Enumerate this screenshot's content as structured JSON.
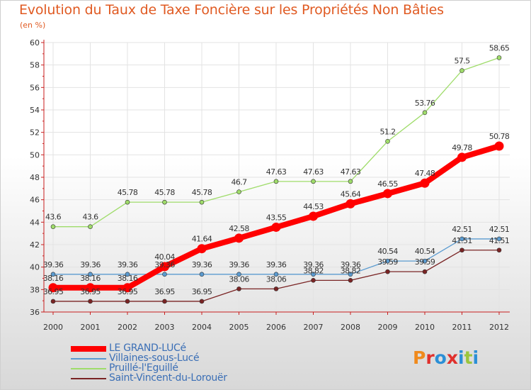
{
  "title": "Evolution du Taux de Taxe Foncière sur les Propriétés Non Bâties",
  "subtitle": "(en %)",
  "logo_text": "Proxiti",
  "colors": {
    "title": "#e05a22",
    "axis": "#c81e1e",
    "grid": "#e3e3e3",
    "logo": [
      "#f08a1c",
      "#e0302c",
      "#2b8fd6",
      "#e0302c",
      "#2b8fd6",
      "#9bc53d",
      "#2b8fd6"
    ]
  },
  "chart_data": {
    "type": "line",
    "x": [
      "2000",
      "2001",
      "2002",
      "2003",
      "2004",
      "2005",
      "2006",
      "2007",
      "2008",
      "2009",
      "2010",
      "2011",
      "2012"
    ],
    "y_ticks": [
      "36",
      "38",
      "40",
      "42",
      "44",
      "46",
      "48",
      "50",
      "52",
      "54",
      "56",
      "58",
      "60"
    ],
    "ylim": [
      36,
      60
    ],
    "grid": true,
    "legend_position": "bottom-left",
    "series": [
      {
        "name": "LE GRAND-LUCé",
        "color": "#ff0000",
        "values": [
          38.16,
          38.16,
          38.16,
          40.04,
          41.64,
          42.58,
          43.55,
          44.53,
          45.64,
          46.55,
          47.48,
          49.78,
          50.78
        ],
        "labels": [
          "38.16",
          "38.16",
          "38.16",
          "40.04",
          "41.64",
          "42.58",
          "43.55",
          "44.53",
          "45.64",
          "46.55",
          "47.48",
          "49.78",
          "50.78"
        ]
      },
      {
        "name": "Villaines-sous-Lucé",
        "color": "#5b9bd0",
        "values": [
          39.36,
          39.36,
          39.36,
          39.36,
          39.36,
          39.36,
          39.36,
          39.36,
          39.36,
          40.54,
          40.54,
          42.51,
          42.51
        ],
        "labels": [
          "39.36",
          "39.36",
          "39.36",
          "39.36",
          "39.36",
          "39.36",
          "39.36",
          "39.36",
          "39.36",
          "40.54",
          "40.54",
          "42.51",
          "42.51"
        ]
      },
      {
        "name": "Pruillé-l'Eguillé",
        "color": "#9fdc6a",
        "values": [
          43.6,
          43.6,
          45.78,
          45.78,
          45.78,
          46.7,
          47.63,
          47.63,
          47.63,
          51.2,
          53.76,
          57.5,
          58.65
        ],
        "labels": [
          "43.6",
          "43.6",
          "45.78",
          "45.78",
          "45.78",
          "46.7",
          "47.63",
          "47.63",
          "47.63",
          "51.2",
          "53.76",
          "57.5",
          "58.65"
        ]
      },
      {
        "name": "Saint-Vincent-du-Lorouër",
        "color": "#7a2424",
        "values": [
          36.95,
          36.95,
          36.95,
          36.95,
          36.95,
          38.06,
          38.06,
          38.82,
          38.82,
          39.59,
          39.59,
          41.51,
          41.51
        ],
        "labels": [
          "36.95",
          "36.95",
          "36.95",
          "36.95",
          "36.95",
          "38.06",
          "38.06",
          "38.82",
          "38.82",
          "39.59",
          "39.59",
          "41.51",
          "41.51"
        ]
      }
    ]
  }
}
